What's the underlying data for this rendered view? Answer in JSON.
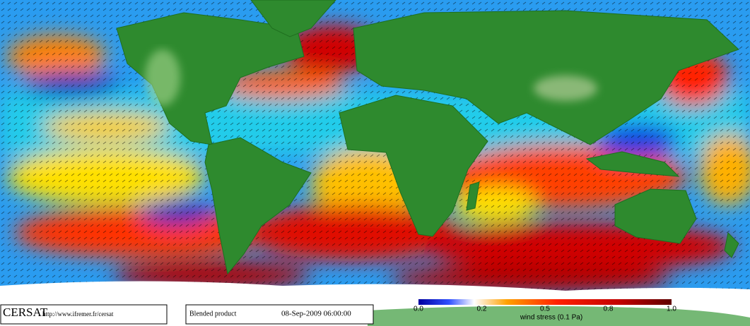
{
  "footer": {
    "logo": "CERSAT",
    "url": "http://www.ifremer.fr/cersat",
    "product": "Blended product",
    "datetime": "08-Sep-2009 06:00:00"
  },
  "colorbar": {
    "ticks": [
      "0.0",
      "0.2",
      "0.5",
      "0.8",
      "1.0"
    ],
    "label": "wind stress (0.1 Pa)"
  }
}
